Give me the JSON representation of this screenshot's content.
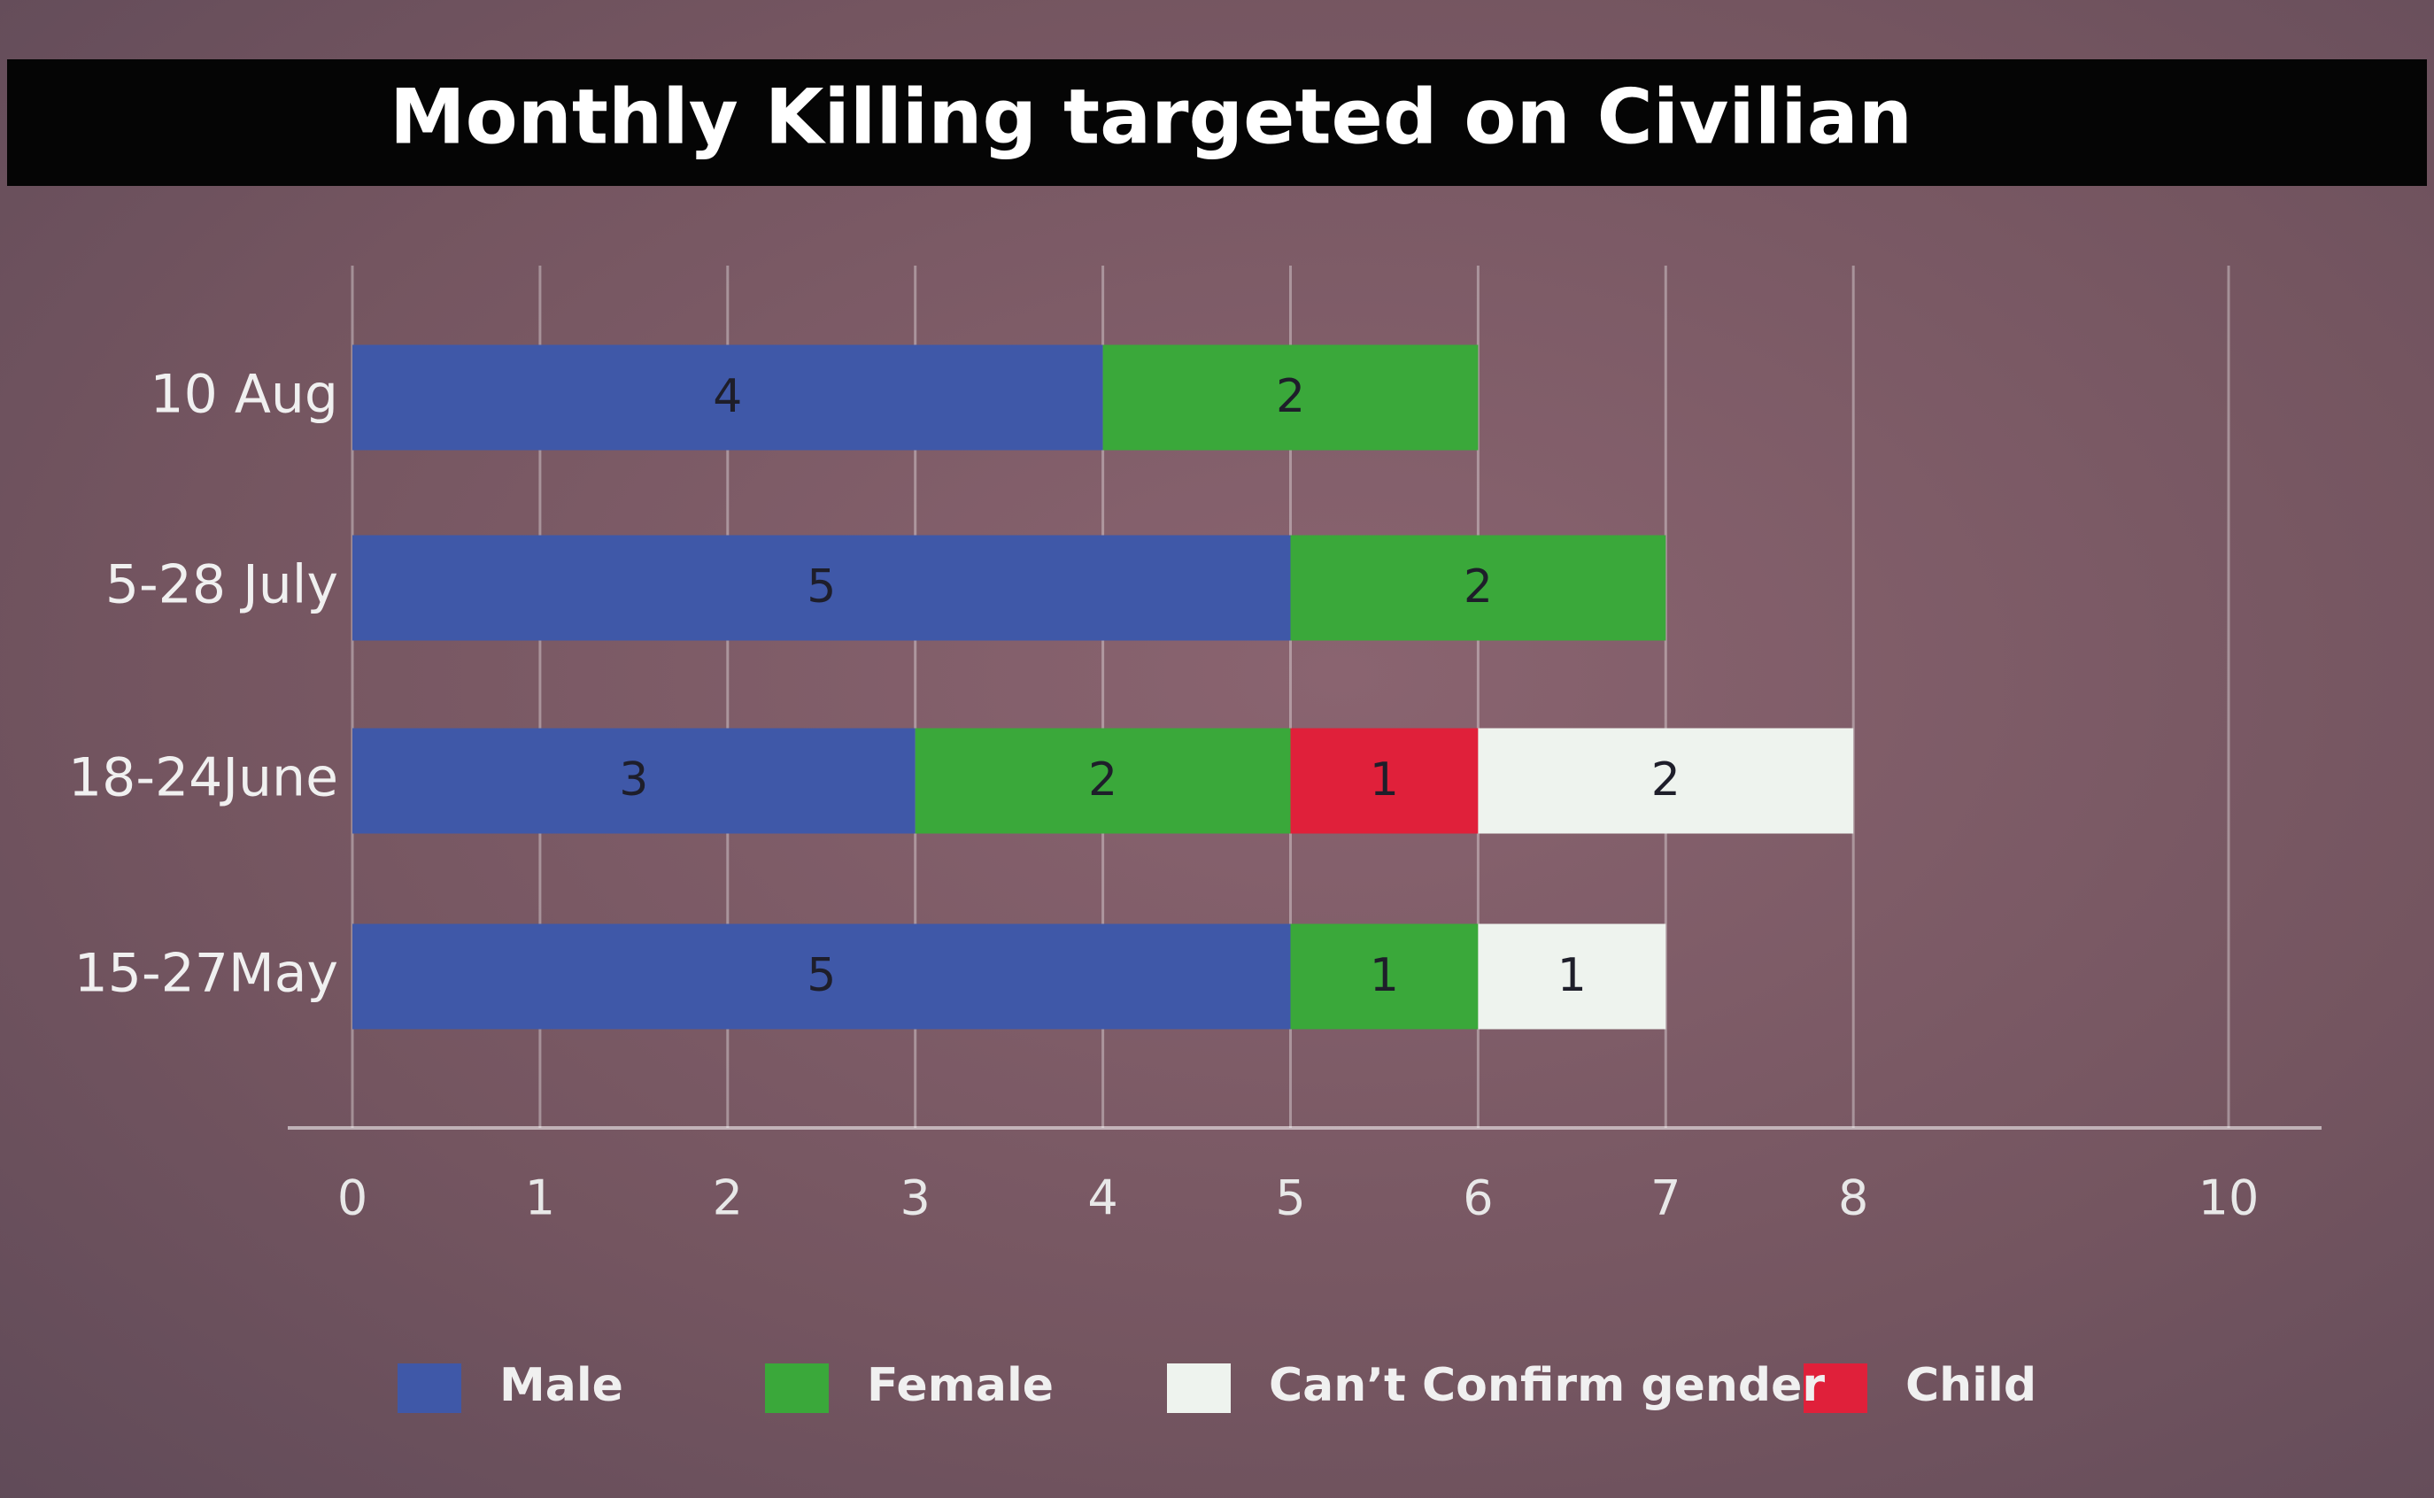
{
  "chart_data": {
    "type": "bar",
    "orientation": "horizontal",
    "stacked": true,
    "title": "Monthly Killing targeted on Civilian",
    "categories": [
      "10 Aug",
      "5-28 July",
      "18-24June",
      "15-27May"
    ],
    "series": [
      {
        "name": "Male",
        "color": "#3f58a8",
        "values": [
          4,
          5,
          3,
          5
        ]
      },
      {
        "name": "Female",
        "color": "#3aa83a",
        "values": [
          2,
          2,
          2,
          1
        ]
      },
      {
        "name": "Child",
        "color": "#e0203a",
        "values": [
          null,
          null,
          1,
          null
        ]
      },
      {
        "name": "Can’t Confirm gender",
        "color": "#eef3ee",
        "values": [
          null,
          null,
          2,
          1
        ]
      }
    ],
    "xlim": [
      0,
      10
    ],
    "xticks": [
      0,
      1,
      2,
      3,
      4,
      5,
      6,
      7,
      8,
      10
    ],
    "grid": true
  }
}
